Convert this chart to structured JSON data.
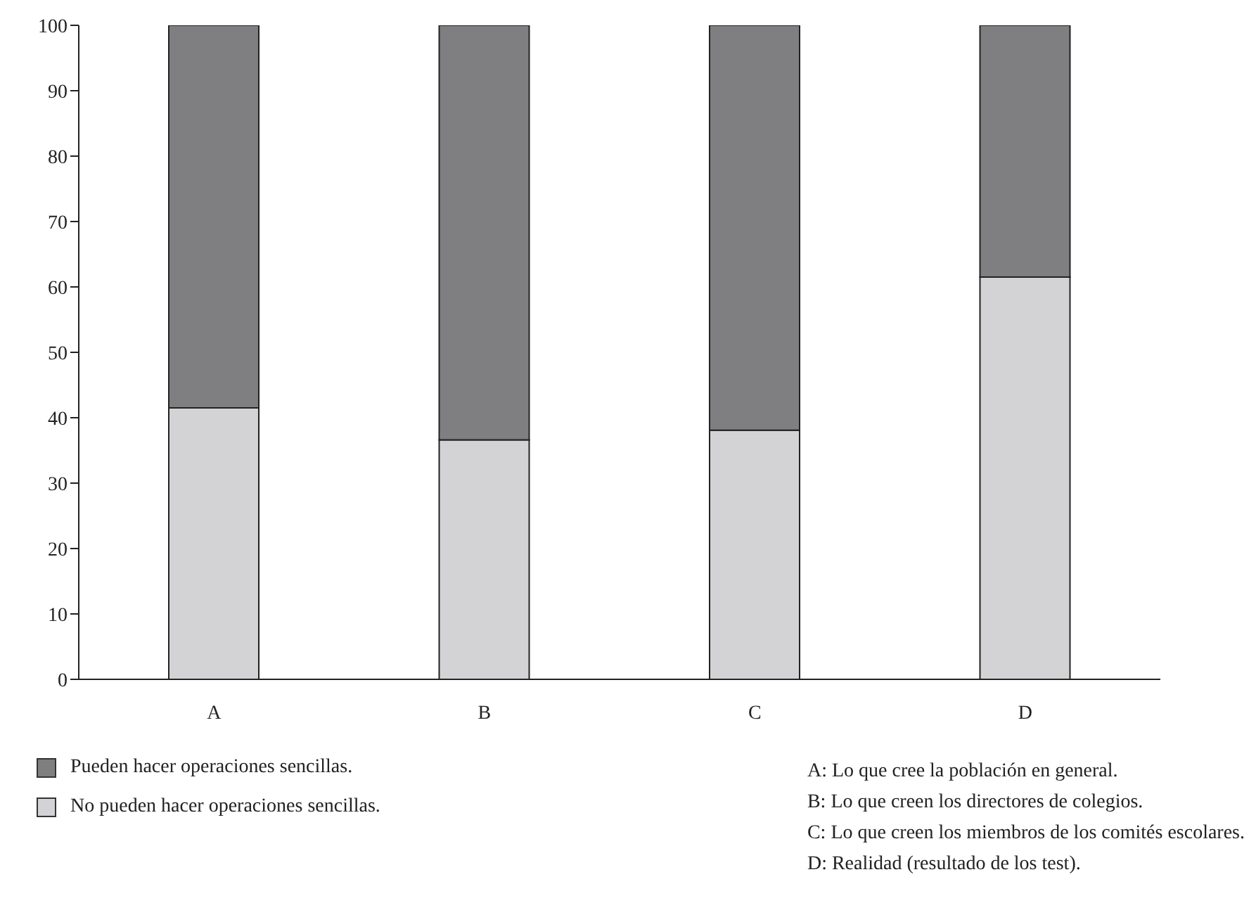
{
  "chart_data": {
    "type": "bar",
    "stacked": true,
    "categories": [
      "A",
      "B",
      "C",
      "D"
    ],
    "series": [
      {
        "name": "No pueden hacer operaciones sencillas.",
        "color": "#d3d3d5",
        "values": [
          41.5,
          36.6,
          38.1,
          61.5
        ]
      },
      {
        "name": "Pueden hacer operaciones sencillas.",
        "color": "#7f7f82",
        "values": [
          58.5,
          63.4,
          61.9,
          38.5
        ]
      }
    ],
    "ylim": [
      0,
      100
    ],
    "yticks": [
      0,
      10,
      20,
      30,
      40,
      50,
      60,
      70,
      80,
      90,
      100
    ],
    "grid": false,
    "legend": "bottom",
    "annotations": [
      "A: Lo que cree la población en general.",
      "B: Lo que creen los directores de colegios.",
      "C: Lo que creen los miembros de los comités escolares.",
      "D: Realidad (resultado de los test)."
    ]
  }
}
